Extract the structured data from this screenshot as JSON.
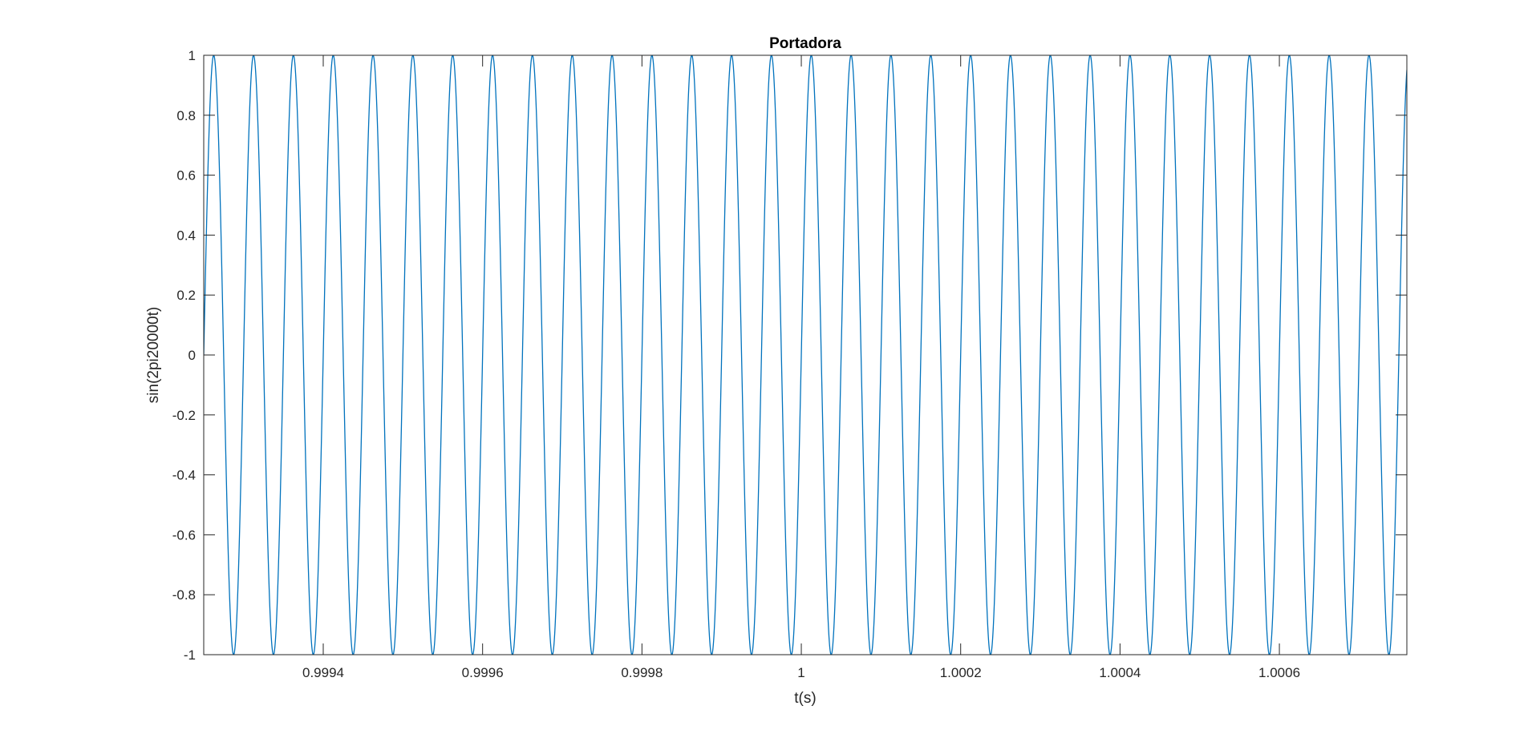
{
  "chart_data": {
    "type": "line",
    "title": "Portadora",
    "xlabel": "t(s)",
    "ylabel": "sin(2pi20000t)",
    "xlim": [
      0.99925,
      1.00076
    ],
    "ylim": [
      -1,
      1
    ],
    "x_ticks": [
      0.9994,
      0.9996,
      0.9998,
      1,
      1.0002,
      1.0004,
      1.0006
    ],
    "x_tick_labels": [
      "0.9994",
      "0.9996",
      "0.9998",
      "1",
      "1.0002",
      "1.0004",
      "1.0006"
    ],
    "y_ticks": [
      -1,
      -0.8,
      -0.6,
      -0.4,
      -0.2,
      0,
      0.2,
      0.4,
      0.6,
      0.8,
      1
    ],
    "y_tick_labels": [
      "-1",
      "-0.8",
      "-0.6",
      "-0.4",
      "-0.2",
      "0",
      "0.2",
      "0.4",
      "0.6",
      "0.8",
      "1"
    ],
    "grid": false,
    "series": [
      {
        "function": "sin(2*pi*20000*t)",
        "frequency_hz": 20000,
        "amplitude": 1,
        "color": "#0072BD"
      }
    ]
  },
  "colors": {
    "axes": "#262626",
    "background": "#ffffff",
    "line": "#0072BD"
  }
}
